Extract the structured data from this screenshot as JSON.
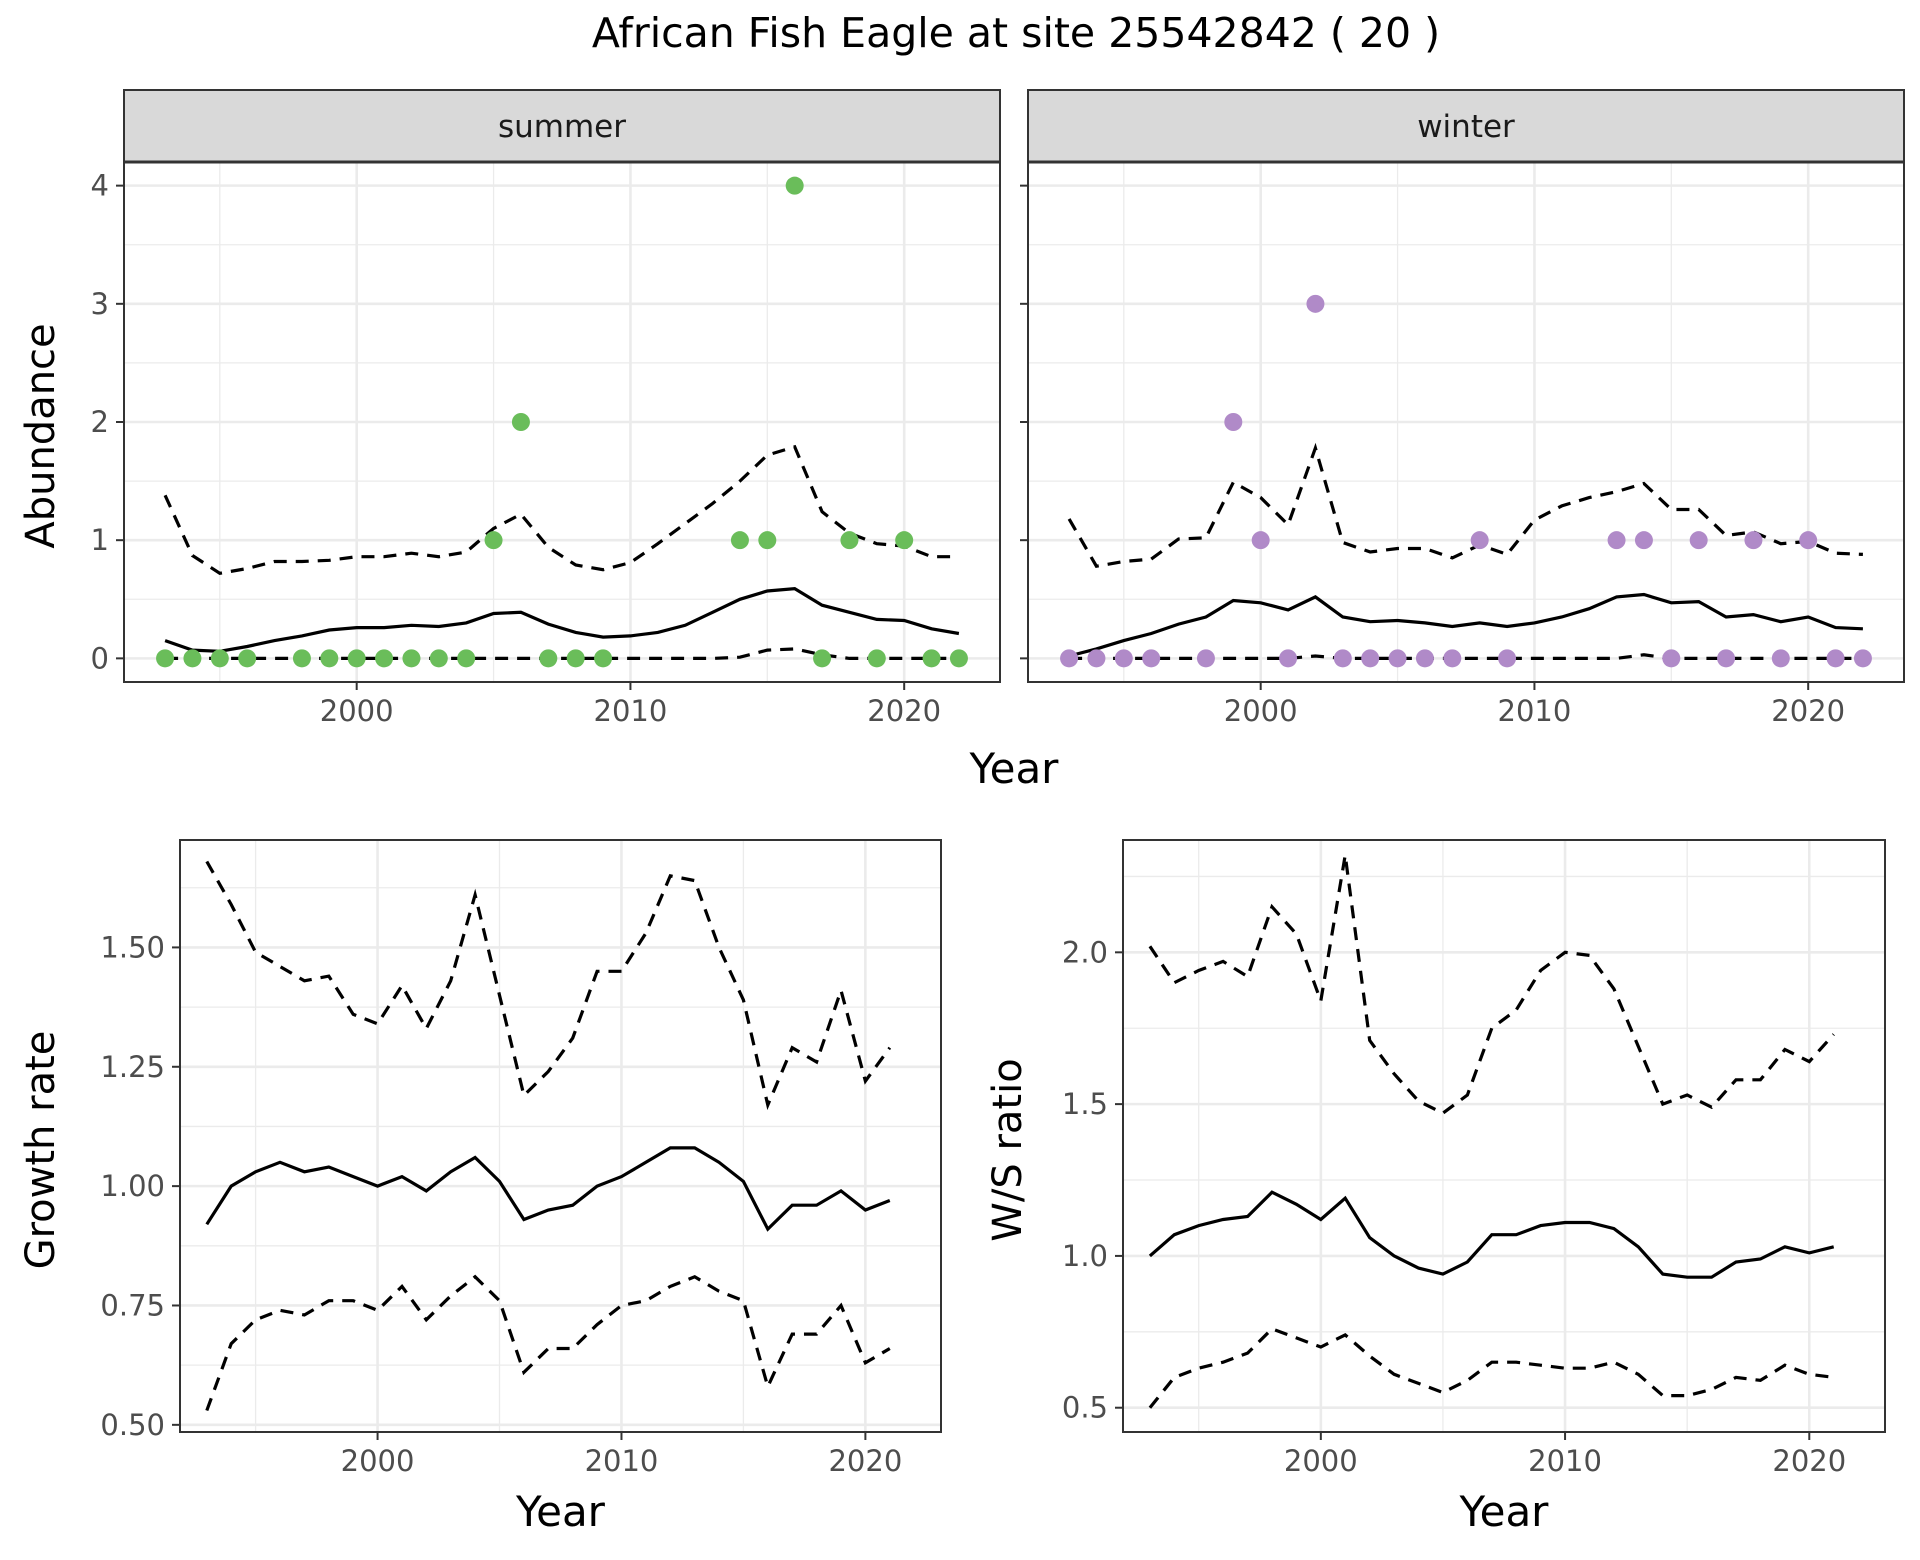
{
  "figure_title": "African Fish Eagle at site 25542842 ( 20 )",
  "colors": {
    "summer": "#6abd5a",
    "winter": "#b08ac8",
    "line": "#000000",
    "grid": "#ebebeb",
    "strip": "#d9d9d9",
    "axis_text": "#4d4d4d"
  },
  "chart_data": [
    {
      "type": "scatter",
      "facet": "summer",
      "xlabel": "Year",
      "ylabel": "Abundance",
      "xlim": [
        1991.5,
        2023.5
      ],
      "ylim": [
        -0.2,
        4.2
      ],
      "xticks": [
        2000,
        2010,
        2020
      ],
      "yticks": [
        0,
        1,
        2,
        3,
        4
      ],
      "grid": true,
      "point_color": "#6abd5a",
      "points": {
        "x": [
          1993,
          1994,
          1995,
          1996,
          1998,
          1999,
          2000,
          2001,
          2002,
          2003,
          2004,
          2005,
          2006,
          2007,
          2008,
          2009,
          2014,
          2015,
          2016,
          2017,
          2018,
          2019,
          2020,
          2021,
          2022
        ],
        "y": [
          0,
          0,
          0,
          0,
          0,
          0,
          0,
          0,
          0,
          0,
          0,
          1,
          2,
          0,
          0,
          0,
          1,
          1,
          4,
          0,
          1,
          0,
          1,
          0,
          0
        ]
      },
      "x": [
        1993,
        1994,
        1995,
        1996,
        1997,
        1998,
        1999,
        2000,
        2001,
        2002,
        2003,
        2004,
        2005,
        2006,
        2007,
        2008,
        2009,
        2010,
        2011,
        2012,
        2013,
        2014,
        2015,
        2016,
        2017,
        2018,
        2019,
        2020,
        2021,
        2022
      ],
      "mean": [
        0.15,
        0.07,
        0.06,
        0.1,
        0.15,
        0.19,
        0.24,
        0.26,
        0.26,
        0.28,
        0.27,
        0.3,
        0.38,
        0.39,
        0.29,
        0.22,
        0.18,
        0.19,
        0.22,
        0.28,
        0.39,
        0.5,
        0.57,
        0.59,
        0.45,
        0.39,
        0.33,
        0.32,
        0.25,
        0.21
      ],
      "upper": [
        1.38,
        0.87,
        0.72,
        0.76,
        0.82,
        0.82,
        0.83,
        0.86,
        0.86,
        0.89,
        0.86,
        0.9,
        1.1,
        1.22,
        0.94,
        0.79,
        0.75,
        0.81,
        0.97,
        1.14,
        1.31,
        1.5,
        1.72,
        1.79,
        1.24,
        1.06,
        0.97,
        0.95,
        0.86,
        0.86
      ],
      "lower": [
        0,
        0,
        0,
        0,
        0,
        0,
        0,
        0,
        0,
        0,
        0,
        0,
        0,
        0,
        0,
        0,
        0,
        0,
        0,
        0,
        0,
        0.01,
        0.07,
        0.08,
        0.03,
        0,
        0,
        0,
        0,
        0
      ]
    },
    {
      "type": "scatter",
      "facet": "winter",
      "xlabel": "Year",
      "ylabel": "Abundance",
      "xlim": [
        1991.5,
        2023.5
      ],
      "ylim": [
        -0.2,
        4.2
      ],
      "xticks": [
        2000,
        2010,
        2020
      ],
      "yticks": [
        0,
        1,
        2,
        3,
        4
      ],
      "grid": true,
      "point_color": "#b08ac8",
      "points": {
        "x": [
          1993,
          1994,
          1995,
          1996,
          1998,
          1999,
          2000,
          2001,
          2002,
          2003,
          2004,
          2005,
          2006,
          2007,
          2008,
          2009,
          2013,
          2014,
          2015,
          2016,
          2017,
          2018,
          2019,
          2020,
          2021,
          2022
        ],
        "y": [
          0,
          0,
          0,
          0,
          0,
          2,
          1,
          0,
          3,
          0,
          0,
          0,
          0,
          0,
          1,
          0,
          1,
          1,
          0,
          1,
          0,
          1,
          0,
          1,
          0,
          0
        ]
      },
      "x": [
        1993,
        1994,
        1995,
        1996,
        1997,
        1998,
        1999,
        2000,
        2001,
        2002,
        2003,
        2004,
        2005,
        2006,
        2007,
        2008,
        2009,
        2010,
        2011,
        2012,
        2013,
        2014,
        2015,
        2016,
        2017,
        2018,
        2019,
        2020,
        2021,
        2022
      ],
      "mean": [
        0.02,
        0.08,
        0.15,
        0.21,
        0.29,
        0.35,
        0.49,
        0.47,
        0.41,
        0.52,
        0.35,
        0.31,
        0.32,
        0.3,
        0.27,
        0.3,
        0.27,
        0.3,
        0.35,
        0.42,
        0.52,
        0.54,
        0.47,
        0.48,
        0.35,
        0.37,
        0.31,
        0.35,
        0.26,
        0.25
      ],
      "upper": [
        1.18,
        0.78,
        0.82,
        0.84,
        1.01,
        1.02,
        1.49,
        1.36,
        1.13,
        1.78,
        0.98,
        0.9,
        0.93,
        0.93,
        0.85,
        0.96,
        0.88,
        1.17,
        1.29,
        1.36,
        1.41,
        1.48,
        1.26,
        1.26,
        1.04,
        1.07,
        0.97,
        0.99,
        0.89,
        0.88
      ],
      "lower": [
        0,
        0,
        0,
        0,
        0,
        0,
        0,
        0,
        0,
        0.02,
        0,
        0,
        0,
        0,
        0,
        0,
        0,
        0,
        0,
        0,
        0,
        0.03,
        0,
        0,
        0,
        0,
        0,
        0,
        0,
        0
      ]
    },
    {
      "type": "line",
      "xlabel": "Year",
      "ylabel": "Growth rate",
      "xlim": [
        1991.9,
        2023.1
      ],
      "ylim": [
        0.485,
        1.725
      ],
      "xticks": [
        2000,
        2010,
        2020
      ],
      "yticks": [
        0.5,
        0.75,
        1.0,
        1.25,
        1.5
      ],
      "ytick_labels": [
        "0.50",
        "0.75",
        "1.00",
        "1.25",
        "1.50"
      ],
      "grid": true,
      "x": [
        1993,
        1994,
        1995,
        1996,
        1997,
        1998,
        1999,
        2000,
        2001,
        2002,
        2003,
        2004,
        2005,
        2006,
        2007,
        2008,
        2009,
        2010,
        2011,
        2012,
        2013,
        2014,
        2015,
        2016,
        2017,
        2018,
        2019,
        2020,
        2021
      ],
      "mean": [
        0.92,
        1.0,
        1.03,
        1.05,
        1.03,
        1.04,
        1.02,
        1.0,
        1.02,
        0.99,
        1.03,
        1.06,
        1.01,
        0.93,
        0.95,
        0.96,
        1.0,
        1.02,
        1.05,
        1.08,
        1.08,
        1.05,
        1.01,
        0.91,
        0.96,
        0.96,
        0.99,
        0.95,
        0.97
      ],
      "upper": [
        1.68,
        1.59,
        1.49,
        1.46,
        1.43,
        1.44,
        1.36,
        1.34,
        1.42,
        1.33,
        1.43,
        1.61,
        1.4,
        1.19,
        1.24,
        1.31,
        1.45,
        1.45,
        1.53,
        1.65,
        1.64,
        1.5,
        1.39,
        1.17,
        1.29,
        1.26,
        1.41,
        1.22,
        1.29
      ],
      "lower": [
        0.53,
        0.67,
        0.72,
        0.74,
        0.73,
        0.76,
        0.76,
        0.74,
        0.79,
        0.72,
        0.77,
        0.81,
        0.76,
        0.61,
        0.66,
        0.66,
        0.71,
        0.75,
        0.76,
        0.79,
        0.81,
        0.78,
        0.76,
        0.58,
        0.69,
        0.69,
        0.75,
        0.63,
        0.66
      ]
    },
    {
      "type": "line",
      "xlabel": "Year",
      "ylabel": "W/S ratio",
      "xlim": [
        1991.9,
        2023.1
      ],
      "ylim": [
        0.42,
        2.37
      ],
      "xticks": [
        2000,
        2010,
        2020
      ],
      "yticks": [
        0.5,
        1.0,
        1.5,
        2.0
      ],
      "ytick_labels": [
        "0.5",
        "1.0",
        "1.5",
        "2.0"
      ],
      "grid": true,
      "x": [
        1993,
        1994,
        1995,
        1996,
        1997,
        1998,
        1999,
        2000,
        2001,
        2002,
        2003,
        2004,
        2005,
        2006,
        2007,
        2008,
        2009,
        2010,
        2011,
        2012,
        2013,
        2014,
        2015,
        2016,
        2017,
        2018,
        2019,
        2020,
        2021
      ],
      "mean": [
        1.0,
        1.07,
        1.1,
        1.12,
        1.13,
        1.21,
        1.17,
        1.12,
        1.19,
        1.06,
        1.0,
        0.96,
        0.94,
        0.98,
        1.07,
        1.07,
        1.1,
        1.11,
        1.11,
        1.09,
        1.03,
        0.94,
        0.93,
        0.93,
        0.98,
        0.99,
        1.03,
        1.01,
        1.03
      ],
      "upper": [
        2.02,
        1.9,
        1.94,
        1.97,
        1.92,
        2.15,
        2.06,
        1.84,
        2.32,
        1.71,
        1.6,
        1.51,
        1.47,
        1.53,
        1.75,
        1.81,
        1.94,
        2.0,
        1.99,
        1.88,
        1.69,
        1.5,
        1.53,
        1.49,
        1.58,
        1.58,
        1.68,
        1.64,
        1.73
      ],
      "lower": [
        0.5,
        0.6,
        0.63,
        0.65,
        0.68,
        0.76,
        0.73,
        0.7,
        0.74,
        0.67,
        0.61,
        0.58,
        0.55,
        0.59,
        0.65,
        0.65,
        0.64,
        0.63,
        0.63,
        0.65,
        0.61,
        0.54,
        0.54,
        0.56,
        0.6,
        0.59,
        0.64,
        0.61,
        0.6
      ]
    }
  ]
}
